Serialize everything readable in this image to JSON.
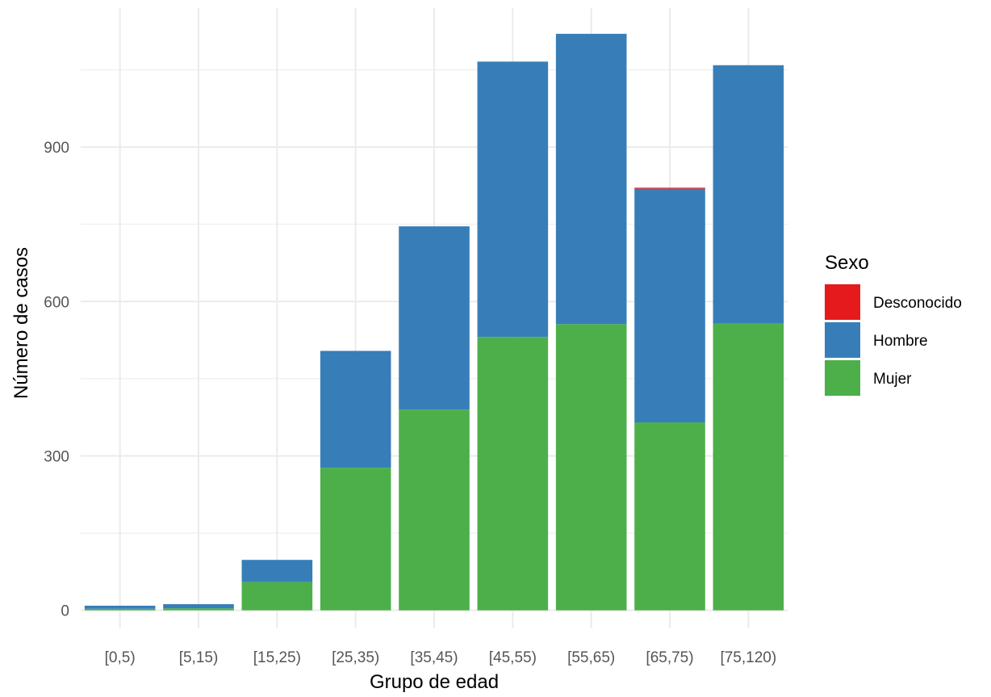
{
  "chart_data": {
    "type": "bar",
    "stacked": true,
    "title": "",
    "xlabel": "Grupo de edad",
    "ylabel": "Número de casos",
    "categories": [
      "[0,5)",
      "[5,15)",
      "[15,25)",
      "[25,35)",
      "[35,45)",
      "[45,55)",
      "[55,65)",
      "[65,75)",
      "[75,120)"
    ],
    "series": [
      {
        "name": "Mujer",
        "color": "#4DAF4A",
        "values": [
          3,
          4,
          55,
          277,
          390,
          531,
          556,
          365,
          557
        ]
      },
      {
        "name": "Hombre",
        "color": "#377EB8",
        "values": [
          6,
          8,
          43,
          227,
          356,
          535,
          564,
          454,
          502
        ]
      },
      {
        "name": "Desconocido",
        "color": "#E41A1C",
        "values": [
          0,
          0,
          0,
          0,
          0,
          0,
          0,
          2,
          0
        ]
      }
    ],
    "yticks": [
      0,
      300,
      600,
      900
    ],
    "ylim": [
      -35,
      1170
    ],
    "grid": true,
    "legend": {
      "title": "Sexo",
      "position": "right",
      "entries": [
        "Desconocido",
        "Hombre",
        "Mujer"
      ]
    }
  }
}
